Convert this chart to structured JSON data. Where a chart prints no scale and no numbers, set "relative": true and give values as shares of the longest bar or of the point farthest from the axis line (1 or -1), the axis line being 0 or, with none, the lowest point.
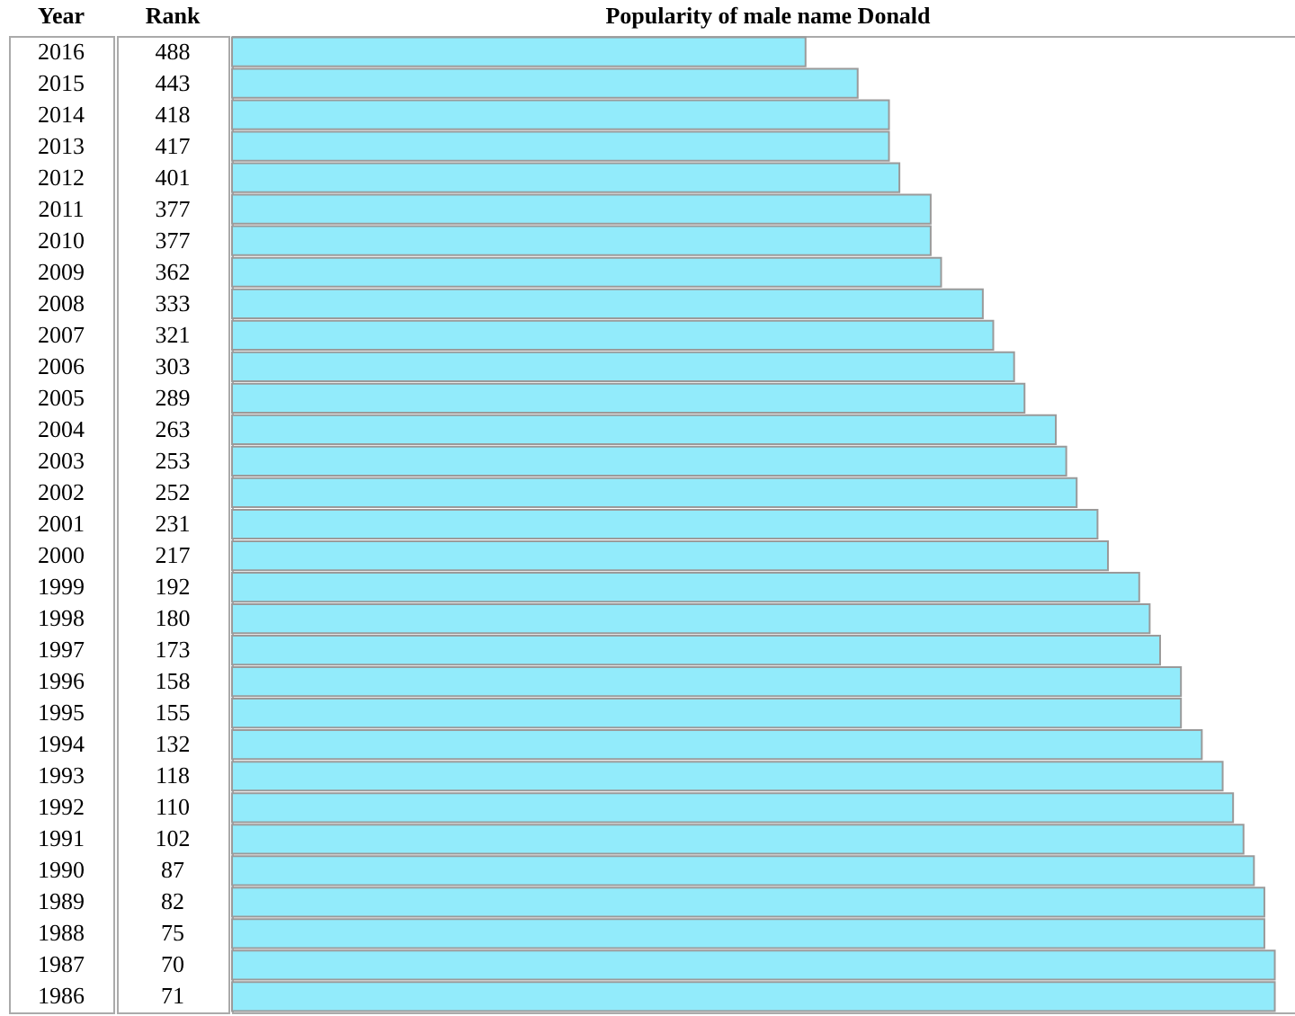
{
  "chart_data": {
    "type": "bar",
    "orientation": "horizontal",
    "relative": true,
    "title": "Popularity of male name Donald",
    "ylabel": "Year",
    "annotations": [
      "Rank",
      "488",
      "443",
      "418",
      "417",
      "401",
      "377",
      "377",
      "362",
      "333",
      "321",
      "303",
      "289",
      "263",
      "253",
      "252",
      "231",
      "217",
      "192",
      "180",
      "173",
      "158",
      "155",
      "132",
      "118",
      "110",
      "102",
      "87",
      "82",
      "75",
      "70",
      "71"
    ],
    "categories": [
      "2016",
      "2015",
      "2014",
      "2013",
      "2012",
      "2011",
      "2010",
      "2009",
      "2008",
      "2007",
      "2006",
      "2005",
      "2004",
      "2003",
      "2002",
      "2001",
      "2000",
      "1999",
      "1998",
      "1997",
      "1996",
      "1995",
      "1994",
      "1993",
      "1992",
      "1991",
      "1990",
      "1989",
      "1988",
      "1987",
      "1986"
    ],
    "values": [
      0.55,
      0.6,
      0.63,
      0.63,
      0.64,
      0.67,
      0.67,
      0.68,
      0.72,
      0.73,
      0.75,
      0.76,
      0.79,
      0.8,
      0.81,
      0.83,
      0.84,
      0.87,
      0.88,
      0.89,
      0.91,
      0.91,
      0.93,
      0.95,
      0.96,
      0.97,
      0.98,
      0.99,
      0.99,
      1,
      1
    ],
    "color": "#92ebfb"
  }
}
